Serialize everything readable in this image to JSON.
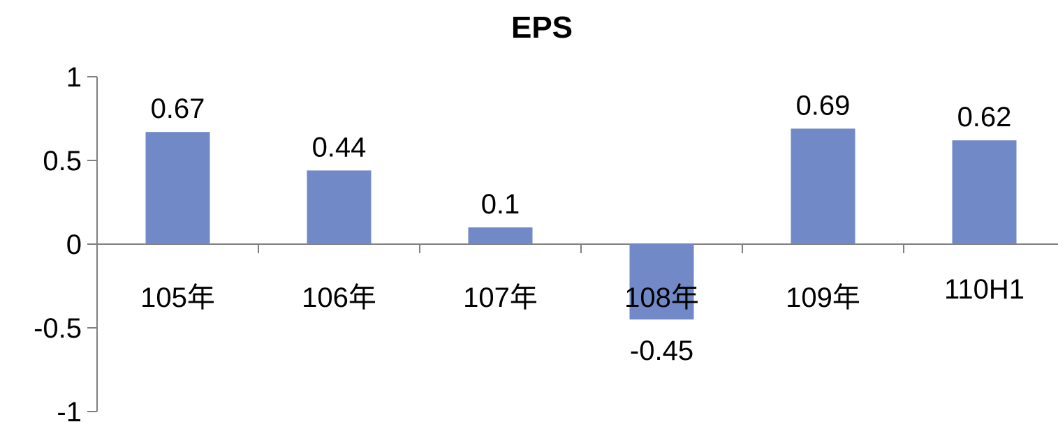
{
  "chart_data": {
    "type": "bar",
    "title": "EPS",
    "categories": [
      "105年",
      "106年",
      "107年",
      "108年",
      "109年",
      "110H1"
    ],
    "values": [
      0.67,
      0.44,
      0.1,
      -0.45,
      0.69,
      0.62
    ],
    "data_labels": [
      "0.67",
      "0.44",
      "0.1",
      "-0.45",
      "0.69",
      "0.62"
    ],
    "yticks": [
      1,
      0.5,
      0,
      -0.5,
      -1
    ],
    "ytick_labels": [
      "1",
      "0.5",
      "0",
      "-0.5",
      "-1"
    ],
    "ylim": [
      -1,
      1
    ],
    "xlabel": "",
    "ylabel": "",
    "grid": false,
    "legend": "none",
    "bar_color": "#7189C6",
    "axis_color": "#7F7F7F"
  }
}
